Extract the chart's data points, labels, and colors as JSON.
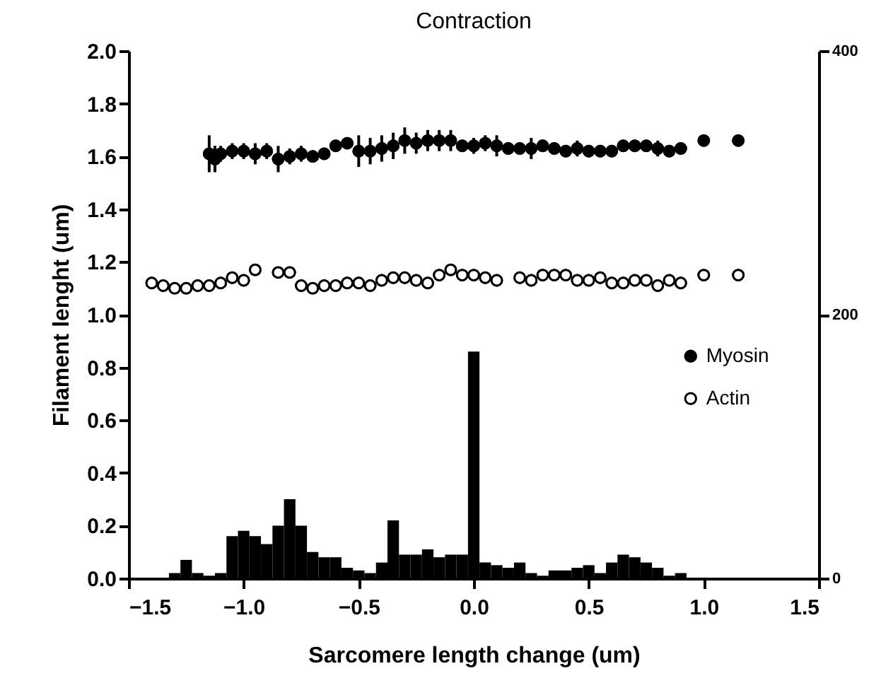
{
  "chart_data": {
    "type": "scatter",
    "title": "Contraction",
    "xlabel": "Sarcomere length change (um)",
    "ylabel": "Filament lenght (um)",
    "xlim": [
      -1.5,
      1.5
    ],
    "xticks": [
      {
        "value": -1.5,
        "label": "−1.5"
      },
      {
        "value": -1.0,
        "label": "−1.0"
      },
      {
        "value": -0.5,
        "label": "−0.5"
      },
      {
        "value": 0,
        "label": "0.0"
      },
      {
        "value": 0.5,
        "label": "0.5"
      },
      {
        "value": 1.0,
        "label": "1.0"
      },
      {
        "value": 1.5,
        "label": "1.5"
      }
    ],
    "ylim": [
      0,
      2
    ],
    "yticks": [
      {
        "value": 0,
        "label": "0.0"
      },
      {
        "value": 0.2,
        "label": "0.2"
      },
      {
        "value": 0.4,
        "label": "0.4"
      },
      {
        "value": 0.6,
        "label": "0.6"
      },
      {
        "value": 0.8,
        "label": "0.8"
      },
      {
        "value": 1.0,
        "label": "1.0"
      },
      {
        "value": 1.2,
        "label": "1.2"
      },
      {
        "value": 1.4,
        "label": "1.4"
      },
      {
        "value": 1.6,
        "label": "1.6"
      },
      {
        "value": 1.8,
        "label": "1.8"
      },
      {
        "value": 2.0,
        "label": "2.0"
      }
    ],
    "y2lim": [
      0,
      400
    ],
    "y2ticks": [
      0,
      200,
      400
    ],
    "grid": false,
    "legend": "right",
    "marker": "circle",
    "series": [
      {
        "name": "Myosin",
        "type": "scatter",
        "color": "#000000",
        "x": [
          -1.15,
          -1.125,
          -1.1,
          -1.05,
          -1.0,
          -0.95,
          -0.9,
          -0.85,
          -0.8,
          -0.75,
          -0.7,
          -0.65,
          -0.6,
          -0.55,
          -0.5,
          -0.45,
          -0.4,
          -0.35,
          -0.3,
          -0.25,
          -0.2,
          -0.15,
          -0.1,
          -0.05,
          0.0,
          0.05,
          0.1,
          0.15,
          0.2,
          0.25,
          0.3,
          0.35,
          0.4,
          0.45,
          0.5,
          0.55,
          0.6,
          0.65,
          0.7,
          0.75,
          0.8,
          0.85,
          0.9,
          1.0,
          1.15
        ],
        "values": [
          1.61,
          1.59,
          1.61,
          1.62,
          1.62,
          1.61,
          1.62,
          1.59,
          1.6,
          1.61,
          1.6,
          1.61,
          1.64,
          1.65,
          1.62,
          1.62,
          1.63,
          1.64,
          1.66,
          1.65,
          1.66,
          1.66,
          1.66,
          1.64,
          1.64,
          1.65,
          1.64,
          1.63,
          1.63,
          1.63,
          1.64,
          1.63,
          1.62,
          1.63,
          1.62,
          1.62,
          1.62,
          1.64,
          1.64,
          1.64,
          1.63,
          1.62,
          1.63,
          1.66,
          1.66
        ],
        "errors": [
          0.07,
          0.05,
          0.03,
          0.03,
          0.03,
          0.04,
          0.03,
          0.05,
          0.03,
          0.03,
          0.02,
          null,
          null,
          null,
          0.06,
          0.05,
          0.05,
          0.05,
          0.05,
          0.04,
          0.04,
          0.04,
          0.04,
          null,
          0.03,
          0.03,
          0.04,
          null,
          null,
          0.04,
          null,
          null,
          null,
          0.03,
          null,
          null,
          null,
          null,
          null,
          null,
          0.03,
          null,
          null,
          null,
          null
        ]
      },
      {
        "name": "Actin",
        "type": "scatter",
        "color": "#ffffff",
        "x": [
          -1.4,
          -1.35,
          -1.3,
          -1.25,
          -1.2,
          -1.15,
          -1.1,
          -1.05,
          -1.0,
          -0.95,
          -0.85,
          -0.8,
          -0.75,
          -0.7,
          -0.65,
          -0.6,
          -0.55,
          -0.5,
          -0.45,
          -0.4,
          -0.35,
          -0.3,
          -0.25,
          -0.2,
          -0.15,
          -0.1,
          -0.05,
          0.0,
          0.05,
          0.1,
          0.2,
          0.25,
          0.3,
          0.35,
          0.4,
          0.45,
          0.5,
          0.55,
          0.6,
          0.65,
          0.7,
          0.75,
          0.8,
          0.85,
          0.9,
          1.0,
          1.15
        ],
        "values": [
          1.12,
          1.11,
          1.1,
          1.1,
          1.11,
          1.11,
          1.12,
          1.14,
          1.13,
          1.17,
          1.16,
          1.16,
          1.11,
          1.1,
          1.11,
          1.11,
          1.12,
          1.12,
          1.11,
          1.13,
          1.14,
          1.14,
          1.13,
          1.12,
          1.15,
          1.17,
          1.15,
          1.15,
          1.14,
          1.13,
          1.14,
          1.13,
          1.15,
          1.15,
          1.15,
          1.13,
          1.13,
          1.14,
          1.12,
          1.12,
          1.13,
          1.13,
          1.11,
          1.13,
          1.12,
          1.15,
          1.15
        ]
      },
      {
        "type": "histogram",
        "axis": "y2",
        "color": "#000000",
        "bins": [
          -1.425,
          -1.375,
          -1.325,
          -1.275,
          -1.225,
          -1.175,
          -1.125,
          -1.075,
          -1.025,
          -0.975,
          -0.925,
          -0.875,
          -0.825,
          -0.775,
          -0.725,
          -0.675,
          -0.625,
          -0.575,
          -0.525,
          -0.475,
          -0.425,
          -0.375,
          -0.325,
          -0.275,
          -0.225,
          -0.175,
          -0.125,
          -0.075,
          -0.025,
          0.025,
          0.075,
          0.125,
          0.175,
          0.225,
          0.275,
          0.325,
          0.375,
          0.425,
          0.475,
          0.525,
          0.575,
          0.625,
          0.675,
          0.725,
          0.775,
          0.825,
          0.875,
          0.925
        ],
        "values": [
          0,
          null,
          4,
          14,
          4,
          2,
          4,
          32,
          36,
          32,
          26,
          40,
          60,
          40,
          20,
          16,
          16,
          8,
          6,
          4,
          12,
          44,
          18,
          18,
          22,
          16,
          18,
          18,
          172,
          12,
          10,
          8,
          12,
          4,
          2,
          6,
          6,
          8,
          10,
          4,
          12,
          18,
          16,
          12,
          8,
          2,
          4
        ]
      }
    ]
  }
}
